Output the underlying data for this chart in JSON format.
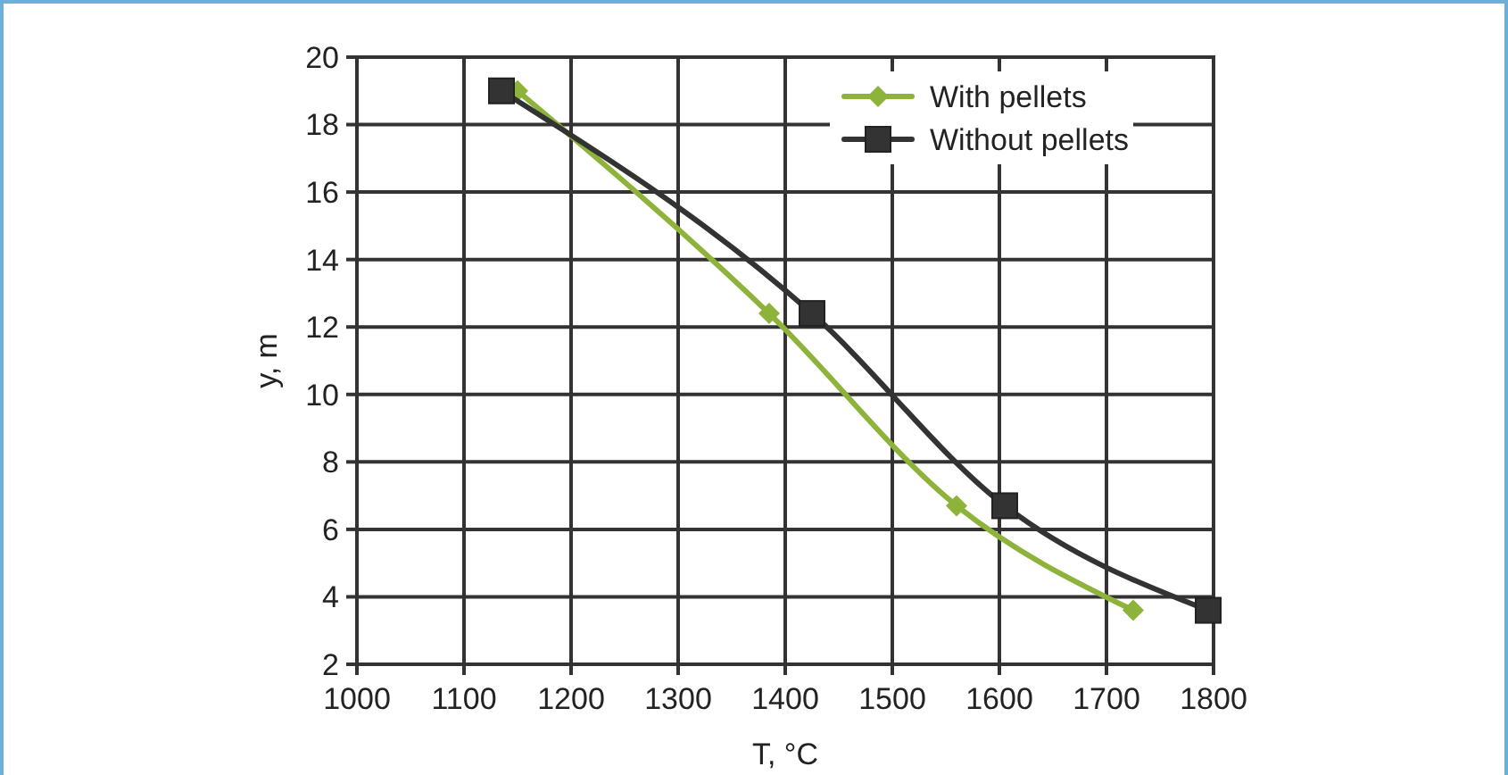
{
  "chart_data": {
    "type": "line",
    "xlabel": "T, °C",
    "ylabel": "y, m",
    "xlim": [
      1000,
      1800
    ],
    "xticks": [
      1000,
      1100,
      1200,
      1300,
      1400,
      1500,
      1600,
      1700,
      1800
    ],
    "ylim": [
      2,
      20
    ],
    "yticks": [
      2,
      4,
      6,
      8,
      10,
      12,
      14,
      16,
      18,
      20
    ],
    "grid": true,
    "legend": "top right",
    "line_style": "solid",
    "series": [
      {
        "name": "With pellets",
        "color": "#8db33a",
        "marker": "diamond",
        "x": [
          1150,
          1385,
          1560,
          1725
        ],
        "values": [
          19.0,
          12.4,
          6.7,
          3.6
        ]
      },
      {
        "name": "Without pellets",
        "color": "#333333",
        "marker": "square",
        "x": [
          1135,
          1425,
          1605,
          1795
        ],
        "values": [
          19.0,
          12.4,
          6.7,
          3.6
        ]
      }
    ]
  }
}
